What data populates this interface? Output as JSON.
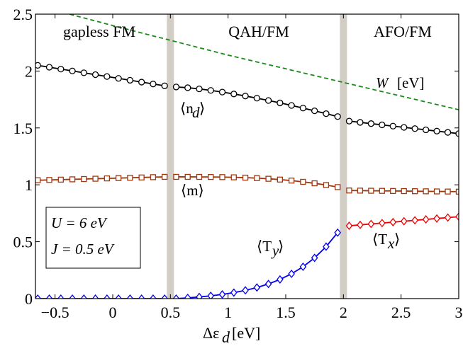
{
  "chart_data": {
    "type": "line",
    "xlabel": "Δε_d [eV]",
    "ylabel": "",
    "xlim": [
      -0.67,
      3.0
    ],
    "ylim": [
      0,
      2.5
    ],
    "xticks": [
      -0.5,
      0,
      0.5,
      1,
      1.5,
      2,
      2.5,
      3
    ],
    "xtick_labels": [
      "−0.5",
      "0",
      "0.5",
      "1",
      "1.5",
      "2",
      "2.5",
      "3"
    ],
    "yticks": [
      0,
      0.5,
      1,
      1.5,
      2,
      2.5
    ],
    "ytick_labels": [
      "0",
      "0.5",
      "1",
      "1.5",
      "2",
      "2.5"
    ],
    "phase_boundaries": [
      0.5,
      2.0
    ],
    "boundary_color": "#d2cdc5",
    "regions": [
      {
        "label": "gapless FM",
        "x": -0.2
      },
      {
        "label": "QAH/FM",
        "x": 1.25
      },
      {
        "label": "AFO/FM",
        "x": 2.55
      }
    ],
    "params_box": {
      "line1": "U = 6 eV",
      "line2": "J = 0.5 eV"
    },
    "series": [
      {
        "name": "W [eV]",
        "color": "#1a8a1a",
        "style": "dashed",
        "marker": "none",
        "x": [
          -0.67,
          -0.3,
          0.0,
          0.5,
          1.0,
          1.5,
          2.0,
          2.5,
          3.0
        ],
        "values": [
          2.58,
          2.48,
          2.4,
          2.27,
          2.14,
          2.02,
          1.9,
          1.78,
          1.66
        ]
      },
      {
        "name": "⟨n_d⟩",
        "color": "#000000",
        "style": "solid",
        "marker": "circle",
        "segments": [
          {
            "x_start": -0.65,
            "x_end": 0.45,
            "y_start": 2.05,
            "y_end": 1.87
          },
          {
            "x_start": 0.55,
            "x_end": 1.95,
            "y_start": 1.86,
            "y_end": 1.6,
            "curve": 1.4
          },
          {
            "x_start": 2.05,
            "x_end": 3.0,
            "y_start": 1.56,
            "y_end": 1.45
          }
        ]
      },
      {
        "name": "⟨m⟩",
        "color": "#a0380f",
        "style": "solid",
        "marker": "square",
        "segments": [
          {
            "x_start": -0.65,
            "x_end": 0.45,
            "y_start": 1.04,
            "y_end": 1.07
          },
          {
            "x_start": 0.55,
            "x_end": 1.95,
            "y_start": 1.07,
            "y_end": 0.98,
            "curve": 3.0
          },
          {
            "x_start": 2.05,
            "x_end": 3.0,
            "y_start": 0.95,
            "y_end": 0.94
          }
        ]
      },
      {
        "name": "⟨T_y⟩",
        "color": "#0000ee",
        "style": "solid",
        "marker": "diamond",
        "segments": [
          {
            "x_start": -0.65,
            "x_end": 0.45,
            "y_start": 0.0,
            "y_end": 0.0
          },
          {
            "x_start": 0.55,
            "x_end": 1.95,
            "y_start": 0.0,
            "y_end": 0.58,
            "curve": "exp"
          }
        ]
      },
      {
        "name": "⟨T_x⟩",
        "color": "#ee0000",
        "style": "solid",
        "marker": "diamond",
        "segments": [
          {
            "x_start": 2.05,
            "x_end": 3.0,
            "y_start": 0.64,
            "y_end": 0.72
          }
        ]
      }
    ]
  },
  "annotations": {
    "w_label": "W",
    "w_unit": "[eV]",
    "nd_label": "⟨n",
    "nd_sub": "d",
    "m_label": "⟨m⟩",
    "ty_label": "⟨T",
    "ty_sub": "y",
    "tx_label": "⟨T",
    "tx_sub": "x",
    "close": "⟩"
  },
  "axis": {
    "xlabel_main": "Δε",
    "xlabel_sub": "d",
    "xlabel_unit": "[eV]"
  }
}
